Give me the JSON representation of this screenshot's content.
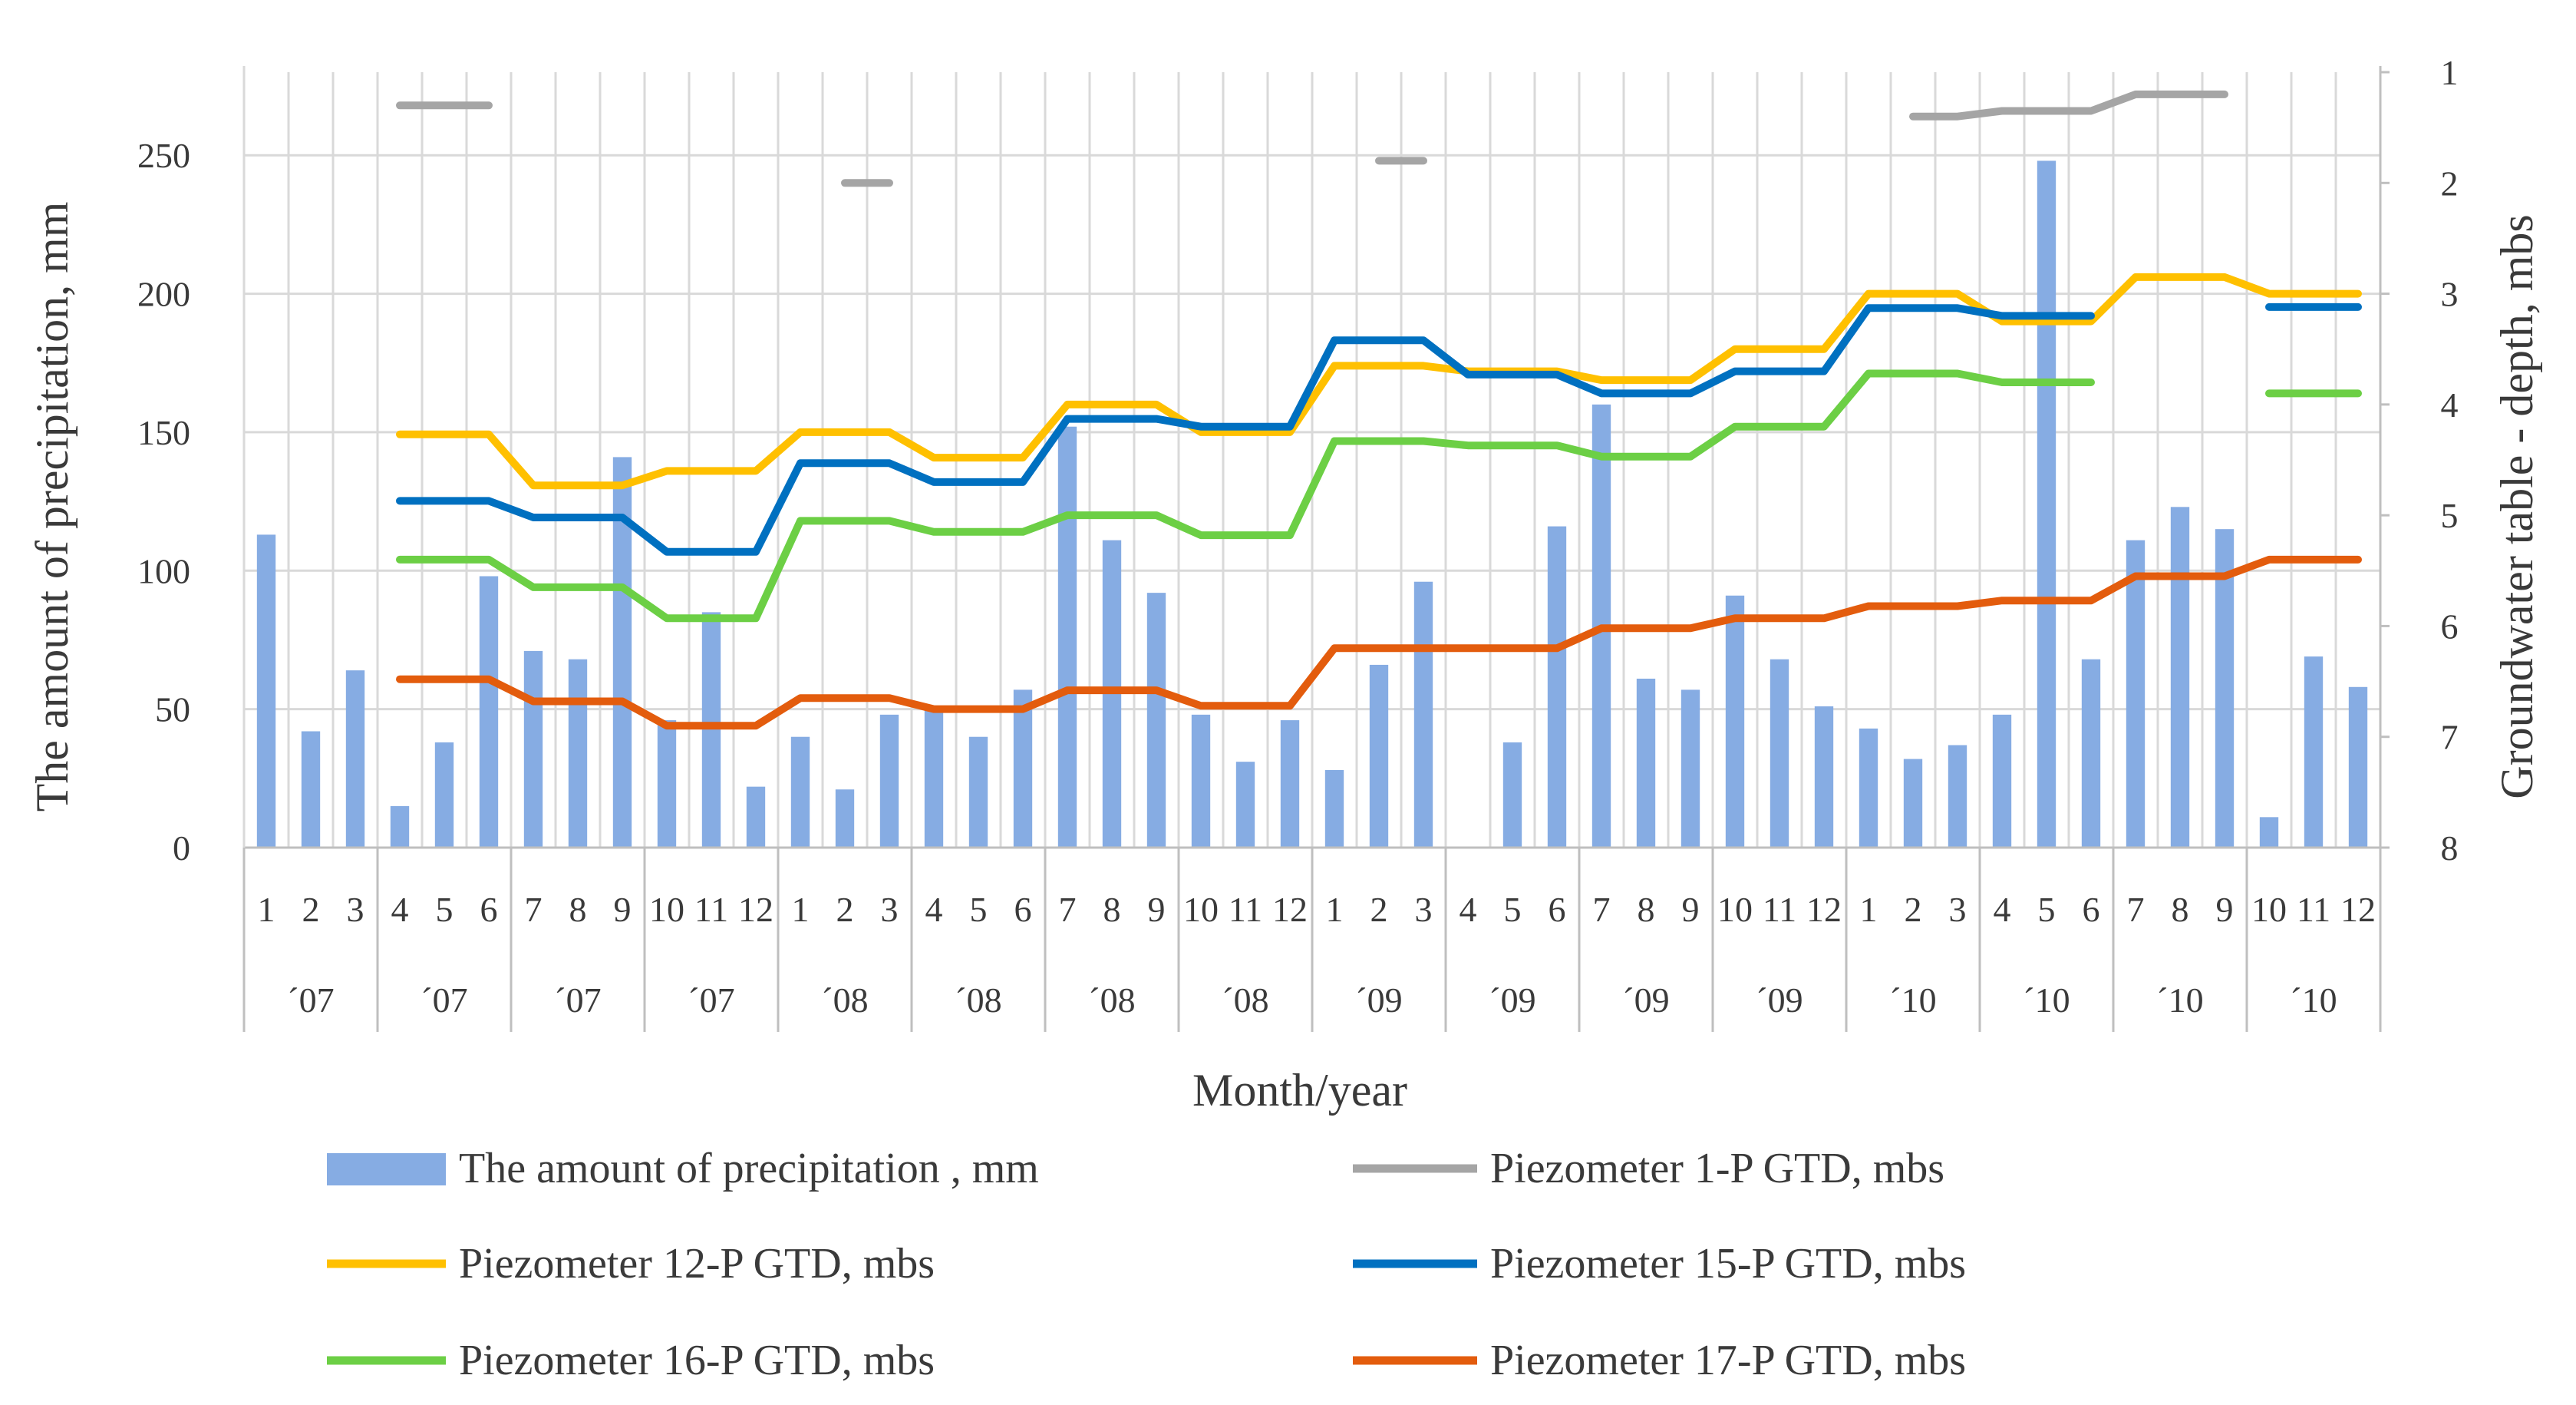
{
  "chart_data": {
    "type": "bar+line",
    "xlabel": "Month/year",
    "ylabel_left": "The amount of precipitation, mm",
    "ylabel_right": "Groundwater table - depth, mbs",
    "ylim_left": [
      0,
      280
    ],
    "yticks_left": [
      0,
      50,
      100,
      150,
      200,
      250
    ],
    "ylim_right": [
      1,
      8
    ],
    "yticks_right": [
      1,
      2,
      3,
      4,
      5,
      6,
      7,
      8
    ],
    "right_axis_inverted": true,
    "groups": [
      {
        "year": "´07",
        "months": [
          "1",
          "2",
          "3"
        ]
      },
      {
        "year": "´07",
        "months": [
          "4",
          "5",
          "6"
        ]
      },
      {
        "year": "´07",
        "months": [
          "7",
          "8",
          "9"
        ]
      },
      {
        "year": "´07",
        "months": [
          "10",
          "11",
          "12"
        ]
      },
      {
        "year": "´08",
        "months": [
          "1",
          "2",
          "3"
        ]
      },
      {
        "year": "´08",
        "months": [
          "4",
          "5",
          "6"
        ]
      },
      {
        "year": "´08",
        "months": [
          "7",
          "8",
          "9"
        ]
      },
      {
        "year": "´08",
        "months": [
          "10",
          "11",
          "12"
        ]
      },
      {
        "year": "´09",
        "months": [
          "1",
          "2",
          "3"
        ]
      },
      {
        "year": "´09",
        "months": [
          "4",
          "5",
          "6"
        ]
      },
      {
        "year": "´09",
        "months": [
          "7",
          "8",
          "9"
        ]
      },
      {
        "year": "´09",
        "months": [
          "10",
          "11",
          "12"
        ]
      },
      {
        "year": "´10",
        "months": [
          "1",
          "2",
          "3"
        ]
      },
      {
        "year": "´10",
        "months": [
          "4",
          "5",
          "6"
        ]
      },
      {
        "year": "´10",
        "months": [
          "7",
          "8",
          "9"
        ]
      },
      {
        "year": "´10",
        "months": [
          "10",
          "11",
          "12"
        ]
      }
    ],
    "precipitation": {
      "name": "The amount of precipitation , mm",
      "color": "#86ace3",
      "values": [
        113,
        42,
        64,
        15,
        38,
        98,
        71,
        68,
        141,
        46,
        85,
        22,
        40,
        21,
        48,
        50,
        40,
        57,
        152,
        111,
        92,
        48,
        31,
        46,
        28,
        66,
        96,
        0,
        38,
        116,
        160,
        61,
        57,
        91,
        68,
        51,
        43,
        32,
        37,
        48,
        248,
        68,
        111,
        123,
        115,
        11,
        69,
        58
      ]
    },
    "series": [
      {
        "name": "Piezometer 1-P GTD, mbs",
        "color": "#a5a5a5",
        "values": [
          null,
          null,
          null,
          1.3,
          1.3,
          1.3,
          null,
          null,
          null,
          null,
          null,
          null,
          null,
          2.0,
          2.0,
          null,
          null,
          null,
          null,
          null,
          null,
          null,
          null,
          null,
          null,
          1.8,
          1.8,
          null,
          null,
          null,
          null,
          null,
          null,
          null,
          null,
          null,
          null,
          1.4,
          1.4,
          1.35,
          1.35,
          1.35,
          1.2,
          1.2,
          1.2,
          null,
          null,
          null
        ]
      },
      {
        "name": "Piezometer 12-P GTD, mbs",
        "color": "#ffc000",
        "values": [
          null,
          null,
          null,
          4.27,
          4.27,
          4.27,
          4.73,
          4.73,
          4.73,
          4.6,
          4.6,
          4.6,
          4.25,
          4.25,
          4.25,
          4.48,
          4.48,
          4.48,
          4.0,
          4.0,
          4.0,
          4.25,
          4.25,
          4.25,
          3.65,
          3.65,
          3.65,
          3.7,
          3.7,
          3.7,
          3.78,
          3.78,
          3.78,
          3.5,
          3.5,
          3.5,
          3.0,
          3.0,
          3.0,
          3.25,
          3.25,
          3.25,
          2.85,
          2.85,
          2.85,
          3.0,
          3.0,
          3.0
        ]
      },
      {
        "name": "Piezometer 15-P GTD, mbs",
        "color": "#0070c0",
        "values": [
          null,
          null,
          null,
          4.87,
          4.87,
          4.87,
          5.02,
          5.02,
          5.02,
          5.33,
          5.33,
          5.33,
          4.53,
          4.53,
          4.53,
          4.7,
          4.7,
          4.7,
          4.13,
          4.13,
          4.13,
          4.2,
          4.2,
          4.2,
          3.42,
          3.42,
          3.42,
          3.73,
          3.73,
          3.73,
          3.9,
          3.9,
          3.9,
          3.7,
          3.7,
          3.7,
          3.13,
          3.13,
          3.13,
          3.2,
          3.2,
          3.2,
          null,
          null,
          null,
          3.12,
          3.12,
          3.12
        ]
      },
      {
        "name": "Piezometer 16-P GTD, mbs",
        "color": "#6ccf45",
        "values": [
          null,
          null,
          null,
          5.4,
          5.4,
          5.4,
          5.65,
          5.65,
          5.65,
          5.93,
          5.93,
          5.93,
          5.05,
          5.05,
          5.05,
          5.15,
          5.15,
          5.15,
          5.0,
          5.0,
          5.0,
          5.18,
          5.18,
          5.18,
          4.33,
          4.33,
          4.33,
          4.37,
          4.37,
          4.37,
          4.47,
          4.47,
          4.47,
          4.2,
          4.2,
          4.2,
          3.72,
          3.72,
          3.72,
          3.8,
          3.8,
          3.8,
          null,
          null,
          null,
          3.9,
          3.9,
          3.9
        ]
      },
      {
        "name": "Piezometer 17-P GTD, mbs",
        "color": "#e35c0d",
        "values": [
          null,
          null,
          null,
          6.48,
          6.48,
          6.48,
          6.68,
          6.68,
          6.68,
          6.9,
          6.9,
          6.9,
          6.65,
          6.65,
          6.65,
          6.75,
          6.75,
          6.75,
          6.58,
          6.58,
          6.58,
          6.72,
          6.72,
          6.72,
          6.2,
          6.2,
          6.2,
          6.2,
          6.2,
          6.2,
          6.02,
          6.02,
          6.02,
          5.93,
          5.93,
          5.93,
          5.82,
          5.82,
          5.82,
          5.77,
          5.77,
          5.77,
          5.55,
          5.55,
          5.55,
          5.4,
          5.4,
          5.4
        ]
      }
    ],
    "legend_position": "bottom"
  }
}
